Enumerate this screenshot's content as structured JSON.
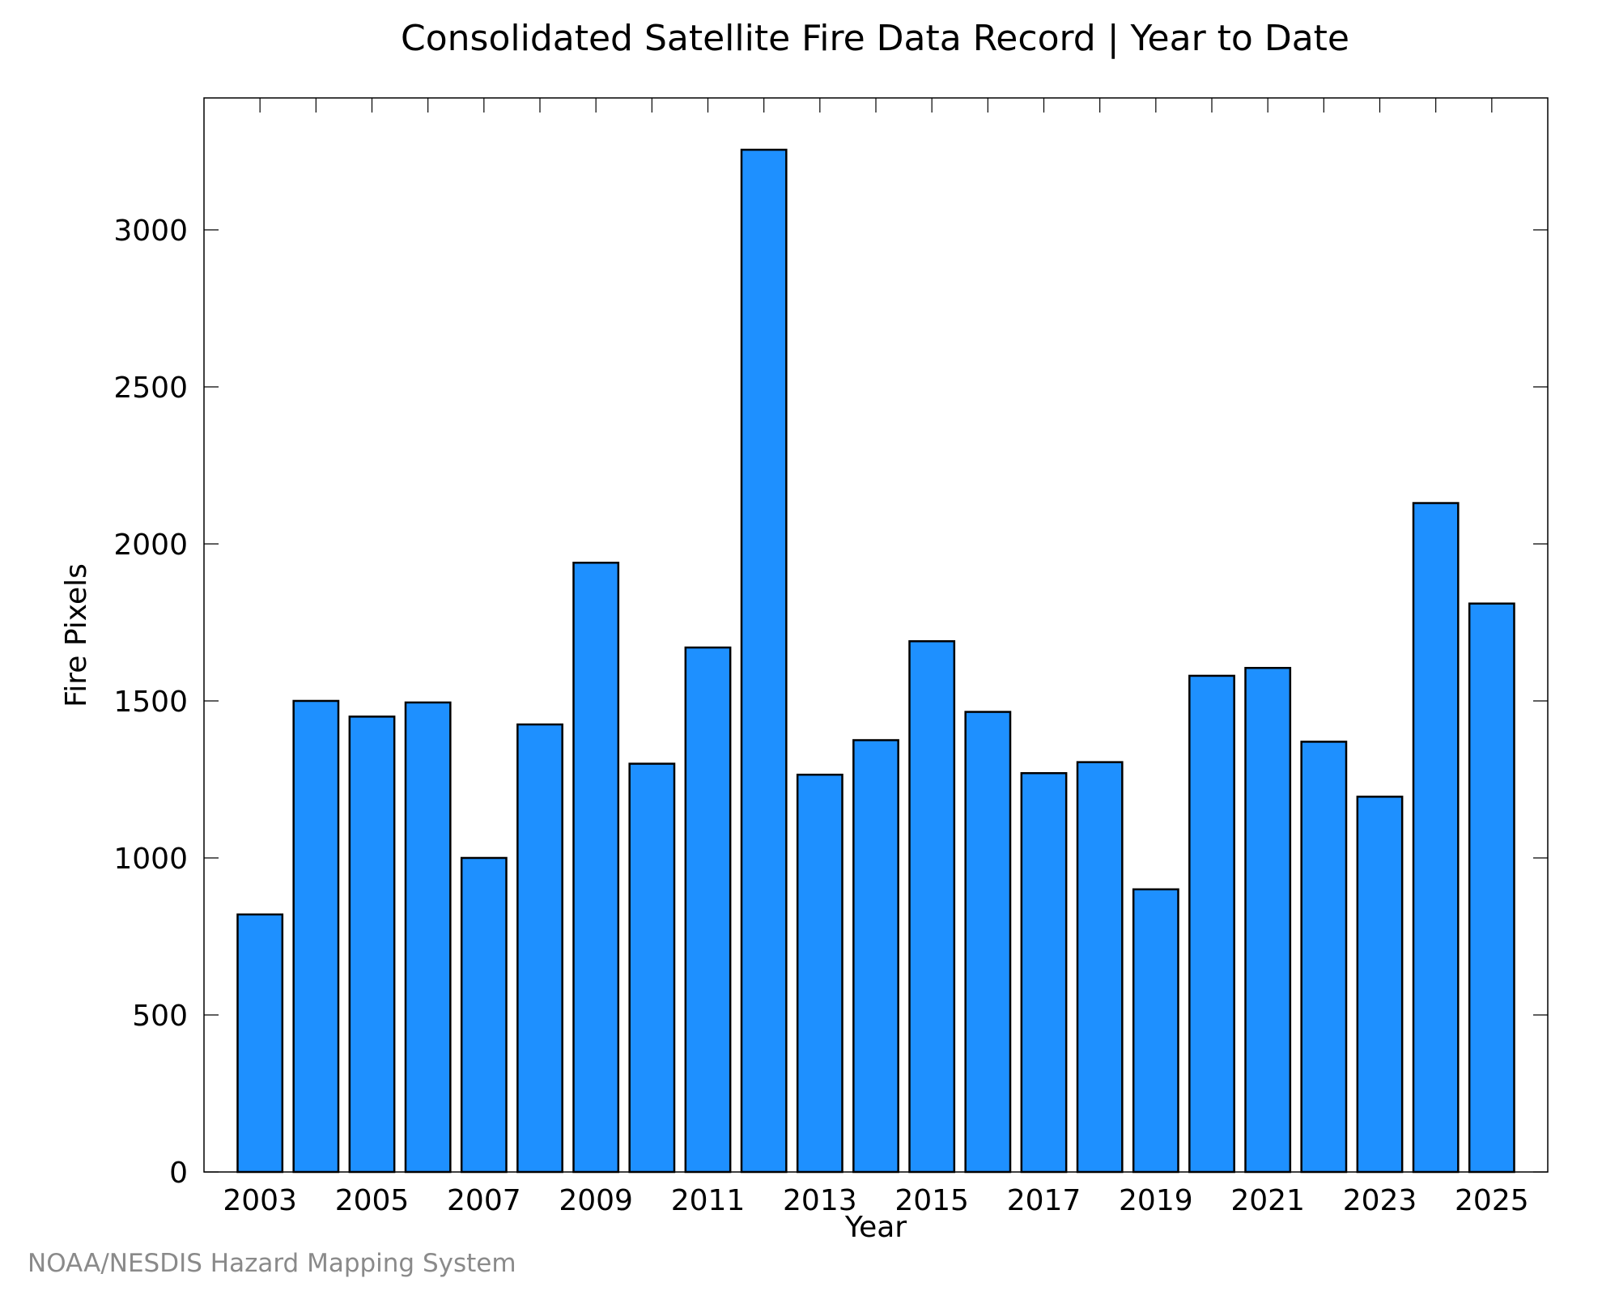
{
  "chart_data": {
    "type": "bar",
    "title": "Consolidated Satellite Fire Data Record | Year to Date",
    "xlabel": "Year",
    "ylabel": "Fire Pixels",
    "categories": [
      "2003",
      "2004",
      "2005",
      "2006",
      "2007",
      "2008",
      "2009",
      "2010",
      "2011",
      "2012",
      "2013",
      "2014",
      "2015",
      "2016",
      "2017",
      "2018",
      "2019",
      "2020",
      "2021",
      "2022",
      "2023",
      "2024",
      "2025"
    ],
    "values": [
      820,
      1500,
      1450,
      1495,
      1000,
      1425,
      1940,
      1300,
      1670,
      3255,
      1265,
      1375,
      1690,
      1465,
      1270,
      1305,
      900,
      1580,
      1605,
      1370,
      1195,
      2130,
      1810
    ],
    "xticks": [
      "2003",
      "2005",
      "2007",
      "2009",
      "2011",
      "2013",
      "2015",
      "2017",
      "2019",
      "2021",
      "2023",
      "2025"
    ],
    "yticks": [
      0,
      500,
      1000,
      1500,
      2000,
      2500,
      3000
    ],
    "ylim": [
      0,
      3420
    ],
    "xlim": [
      2002.0,
      2026.0
    ],
    "bar_color": "#1e90ff",
    "edge_color": "#000000",
    "grid": false,
    "legend": "none"
  },
  "credit": "NOAA/NESDIS Hazard Mapping System"
}
